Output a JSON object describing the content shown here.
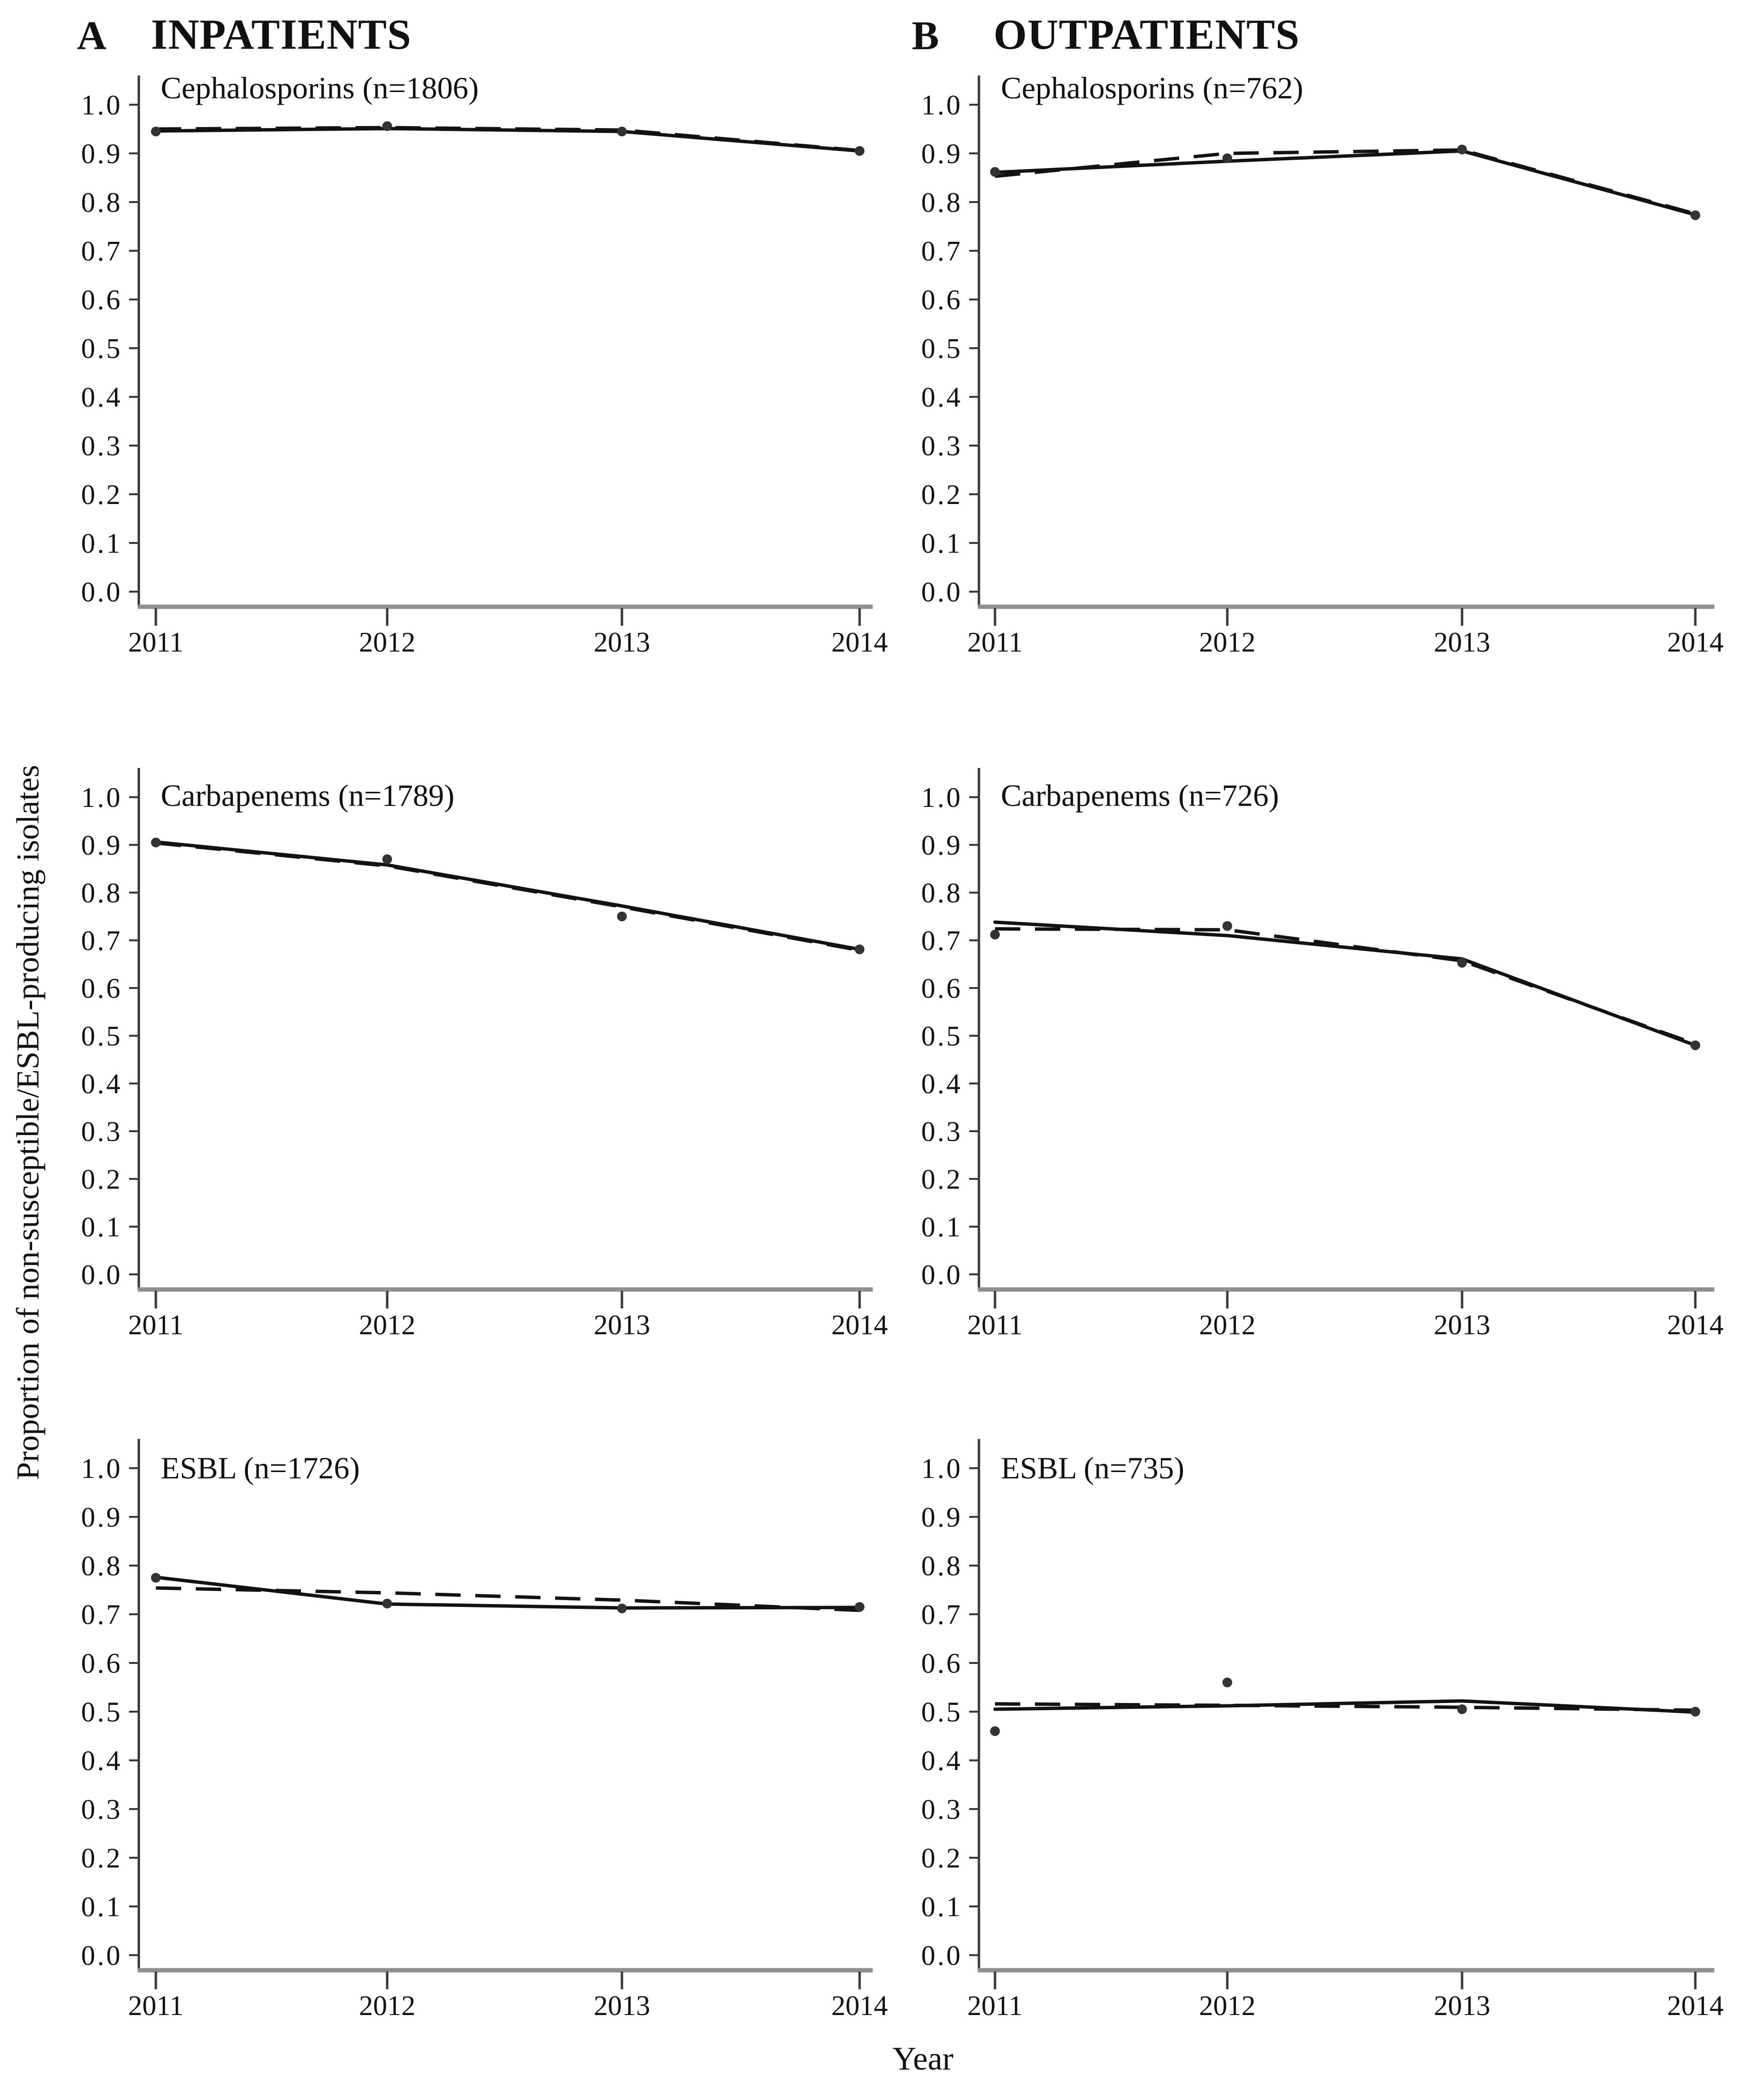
{
  "figure": {
    "panel_a_label": "A",
    "panel_a_header": "INPATIENTS",
    "panel_b_label": "B",
    "panel_b_header": "OUTPATIENTS",
    "y_axis_label": "Proportion of non-susceptible/ESBL-producing isolates",
    "x_axis_label": "Year"
  },
  "axes": {
    "y_ticks": [
      "1.0",
      "0.9",
      "0.8",
      "0.7",
      "0.6",
      "0.5",
      "0.4",
      "0.3",
      "0.2",
      "0.1",
      "0.0"
    ],
    "x_ticks": [
      "2011",
      "2012",
      "2013",
      "2014"
    ]
  },
  "colors": {
    "line": "#121212",
    "marker": "#333333",
    "y_axis": "#3a3a3a",
    "x_axis_line": "#8e8e8e",
    "tick": "#3a3a3a",
    "text": "#111111",
    "background": "#ffffff"
  },
  "chart_data": [
    {
      "id": "inpatients-cephalosporins",
      "column": "A",
      "row": 0,
      "type": "line",
      "title": "Cephalosporins (n=1806)",
      "x": [
        2011,
        2012,
        2013,
        2014
      ],
      "ylim": [
        0,
        1
      ],
      "series": [
        {
          "name": "observed_points",
          "style": "points",
          "values": [
            0.945,
            0.956,
            0.945,
            0.905
          ]
        },
        {
          "name": "trend_solid",
          "style": "solid",
          "values": [
            0.946,
            0.951,
            0.945,
            0.905
          ]
        },
        {
          "name": "trend_dashed",
          "style": "dashed",
          "values": [
            0.95,
            0.953,
            0.948,
            0.906
          ]
        }
      ]
    },
    {
      "id": "outpatients-cephalosporins",
      "column": "B",
      "row": 0,
      "type": "line",
      "title": "Cephalosporins (n=762)",
      "x": [
        2011,
        2012,
        2013,
        2014
      ],
      "ylim": [
        0,
        1
      ],
      "series": [
        {
          "name": "observed_points",
          "style": "points",
          "values": [
            0.862,
            0.89,
            0.908,
            0.773
          ]
        },
        {
          "name": "trend_solid",
          "style": "solid",
          "values": [
            0.861,
            0.884,
            0.905,
            0.774
          ]
        },
        {
          "name": "trend_dashed",
          "style": "dashed",
          "values": [
            0.853,
            0.9,
            0.907,
            0.776
          ]
        }
      ]
    },
    {
      "id": "inpatients-carbapenems",
      "column": "A",
      "row": 1,
      "type": "line",
      "title": "Carbapenems (n=1789)",
      "x": [
        2011,
        2012,
        2013,
        2014
      ],
      "ylim": [
        0,
        1
      ],
      "series": [
        {
          "name": "observed_points",
          "style": "points",
          "values": [
            0.905,
            0.87,
            0.75,
            0.681
          ]
        },
        {
          "name": "trend_solid",
          "style": "solid",
          "values": [
            0.906,
            0.858,
            0.772,
            0.681
          ]
        },
        {
          "name": "trend_dashed",
          "style": "dashed",
          "values": [
            0.904,
            0.856,
            0.77,
            0.679
          ]
        }
      ]
    },
    {
      "id": "outpatients-carbapenems",
      "column": "B",
      "row": 1,
      "type": "line",
      "title": "Carbapenems (n=726)",
      "x": [
        2011,
        2012,
        2013,
        2014
      ],
      "ylim": [
        0,
        1
      ],
      "series": [
        {
          "name": "observed_points",
          "style": "points",
          "values": [
            0.712,
            0.73,
            0.653,
            0.48
          ]
        },
        {
          "name": "trend_solid",
          "style": "solid",
          "values": [
            0.738,
            0.71,
            0.661,
            0.48
          ]
        },
        {
          "name": "trend_dashed",
          "style": "dashed",
          "values": [
            0.724,
            0.722,
            0.657,
            0.483
          ]
        }
      ]
    },
    {
      "id": "inpatients-esbl",
      "column": "A",
      "row": 2,
      "type": "line",
      "title": "ESBL (n=1726)",
      "x": [
        2011,
        2012,
        2013,
        2014
      ],
      "ylim": [
        0,
        1
      ],
      "series": [
        {
          "name": "observed_points",
          "style": "points",
          "values": [
            0.775,
            0.722,
            0.712,
            0.715
          ]
        },
        {
          "name": "trend_solid",
          "style": "solid",
          "values": [
            0.776,
            0.721,
            0.713,
            0.714
          ]
        },
        {
          "name": "trend_dashed",
          "style": "dashed",
          "values": [
            0.754,
            0.744,
            0.729,
            0.708
          ]
        }
      ]
    },
    {
      "id": "outpatients-esbl",
      "column": "B",
      "row": 2,
      "type": "line",
      "title": "ESBL (n=735)",
      "x": [
        2011,
        2012,
        2013,
        2014
      ],
      "ylim": [
        0,
        1
      ],
      "series": [
        {
          "name": "observed_points",
          "style": "points",
          "values": [
            0.46,
            0.56,
            0.505,
            0.5
          ]
        },
        {
          "name": "trend_solid",
          "style": "solid",
          "values": [
            0.505,
            0.512,
            0.522,
            0.499
          ]
        },
        {
          "name": "trend_dashed",
          "style": "dashed",
          "values": [
            0.516,
            0.513,
            0.509,
            0.503
          ]
        }
      ]
    }
  ]
}
